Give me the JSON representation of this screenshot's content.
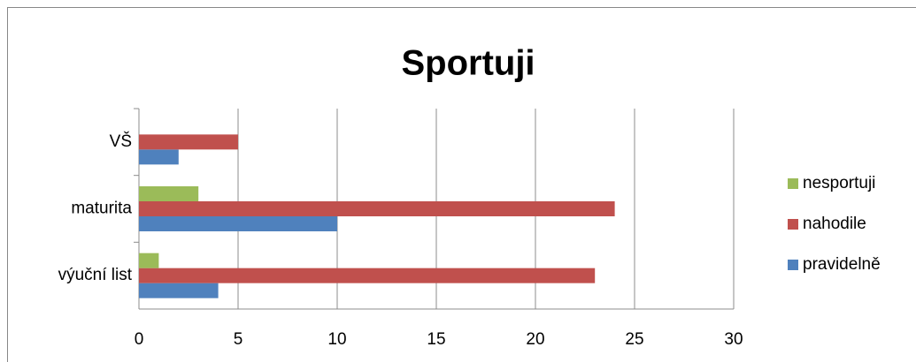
{
  "chart_data": {
    "type": "hbar",
    "title": "Sportuji",
    "categories": [
      "výuční list",
      "maturita",
      "VŠ"
    ],
    "series": [
      {
        "name": "pravidelně",
        "color": "#4f81bd",
        "values": [
          4,
          10,
          2
        ]
      },
      {
        "name": "nahodile",
        "color": "#c0504d",
        "values": [
          23,
          24,
          5
        ]
      },
      {
        "name": "nesportuji",
        "color": "#9bbb59",
        "values": [
          1,
          3,
          0
        ]
      }
    ],
    "xlim": [
      0,
      30
    ],
    "xticks": [
      0,
      5,
      10,
      15,
      20,
      25,
      30
    ],
    "grid": true,
    "legend": "right"
  }
}
